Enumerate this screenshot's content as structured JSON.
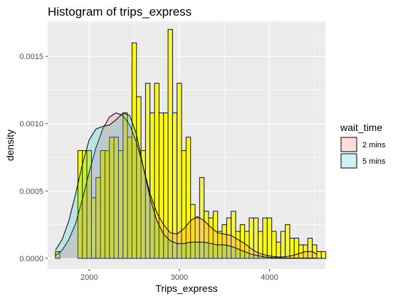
{
  "chart_data": {
    "type": "histogram",
    "title": "Histogram of trips_express",
    "xlabel": "Trips_express",
    "ylabel": "density",
    "xlim": [
      1540,
      4620
    ],
    "ylim": [
      -8e-05,
      0.00176
    ],
    "x_ticks": [
      2000,
      3000,
      4000
    ],
    "x_tick_labels": [
      "2000",
      "3000",
      "4000"
    ],
    "y_ticks": [
      0,
      0.0005,
      0.001,
      0.0015
    ],
    "y_tick_labels": [
      "0.0000",
      "0.0005",
      "0.0010",
      "0.0015"
    ],
    "grid": true,
    "legend": {
      "title": "wait_time",
      "position": "right",
      "entries": [
        {
          "label": "2 mins",
          "fill": "#f8766d",
          "fill_opacity": 0.25
        },
        {
          "label": "5 mins",
          "fill": "#00bfc4",
          "fill_opacity": 0.2
        }
      ]
    },
    "histogram": {
      "fill": "#ffff00",
      "stroke": "#000080",
      "stroke_style": "solid",
      "bin_width": 50,
      "bins_start": 1625,
      "density": [
        5e-05,
        0,
        0,
        0,
        0,
        0.0008,
        0.0008,
        0.0008,
        0.00045,
        0.0006,
        0.0008,
        0.0008,
        0.0009,
        0.0009,
        0.0008,
        0.00108,
        0.0009,
        0.0016,
        0.0012,
        0.0008,
        0.0013,
        0.00108,
        0.0013,
        0.00108,
        0.00108,
        0.0017,
        0.00108,
        0.0013,
        0.0008,
        0.0009,
        0.0004,
        0.0003,
        0.0006,
        0.00035,
        0.0003,
        0.00035,
        0.0002,
        0.00025,
        0.0003,
        0.00035,
        0.0002,
        0.00025,
        0.0002,
        0.0003,
        0.0003,
        0.0002,
        0.0003,
        0.0003,
        0.0002,
        0.00012,
        0.0002,
        0.00025,
        0.00015,
        0.00015,
        0.0001,
        0.0001,
        0.00015,
        0.0001,
        5e-05,
        5e-05
      ]
    },
    "series": [
      {
        "name": "2 mins",
        "fill": "#f8766d",
        "x": [
          1625,
          1700,
          1775,
          1850,
          1925,
          2000,
          2075,
          2150,
          2225,
          2300,
          2375,
          2450,
          2525,
          2600,
          2675,
          2750,
          2825,
          2900,
          2975,
          3050,
          3125,
          3200,
          3275,
          3350,
          3425,
          3500,
          3575,
          3650,
          3725,
          3800,
          3875,
          3950,
          4025,
          4100,
          4175,
          4250,
          4325,
          4400,
          4475,
          4525
        ],
        "y": [
          2e-05,
          6e-05,
          0.00014,
          0.00026,
          0.00044,
          0.00064,
          0.00082,
          0.00096,
          0.00105,
          0.00108,
          0.00106,
          0.00099,
          0.00086,
          0.00068,
          0.00048,
          0.00034,
          0.00025,
          0.00019,
          0.00018,
          0.00022,
          0.00028,
          0.00031,
          0.00028,
          0.00023,
          0.00019,
          0.00018,
          0.00017,
          0.00014,
          0.00011,
          7e-05,
          4e-05,
          2.5e-05,
          1.5e-05,
          1e-05,
          1.2e-05,
          2e-05,
          3.5e-05,
          5e-05,
          5e-05,
          3e-05
        ]
      },
      {
        "name": "5 mins",
        "fill": "#00bfc4",
        "x": [
          1625,
          1700,
          1775,
          1850,
          1925,
          2000,
          2075,
          2150,
          2225,
          2300,
          2375,
          2450,
          2525,
          2600,
          2675,
          2750,
          2825,
          2900,
          2975,
          3050,
          3125,
          3200,
          3275,
          3350,
          3425,
          3500,
          3575,
          3650,
          3725,
          3800,
          3875,
          3950,
          4025,
          4100,
          4175,
          4250,
          4325,
          4400,
          4475,
          4525
        ],
        "y": [
          6e-05,
          0.00014,
          0.00028,
          0.00048,
          0.0007,
          0.00088,
          0.00096,
          0.00098,
          0.00099,
          0.00103,
          0.00108,
          0.00106,
          0.00092,
          0.00068,
          0.00045,
          0.00028,
          0.00018,
          0.00013,
          0.00011,
          0.00011,
          0.00012,
          0.00012,
          0.00012,
          0.00011,
          0.0001,
          0.0001,
          9e-05,
          7e-05,
          5e-05,
          3e-05,
          2e-05,
          1e-05,
          5e-06,
          3e-06,
          2e-06,
          2e-06,
          1e-06,
          1e-06,
          1e-06,
          1e-06
        ]
      }
    ]
  }
}
